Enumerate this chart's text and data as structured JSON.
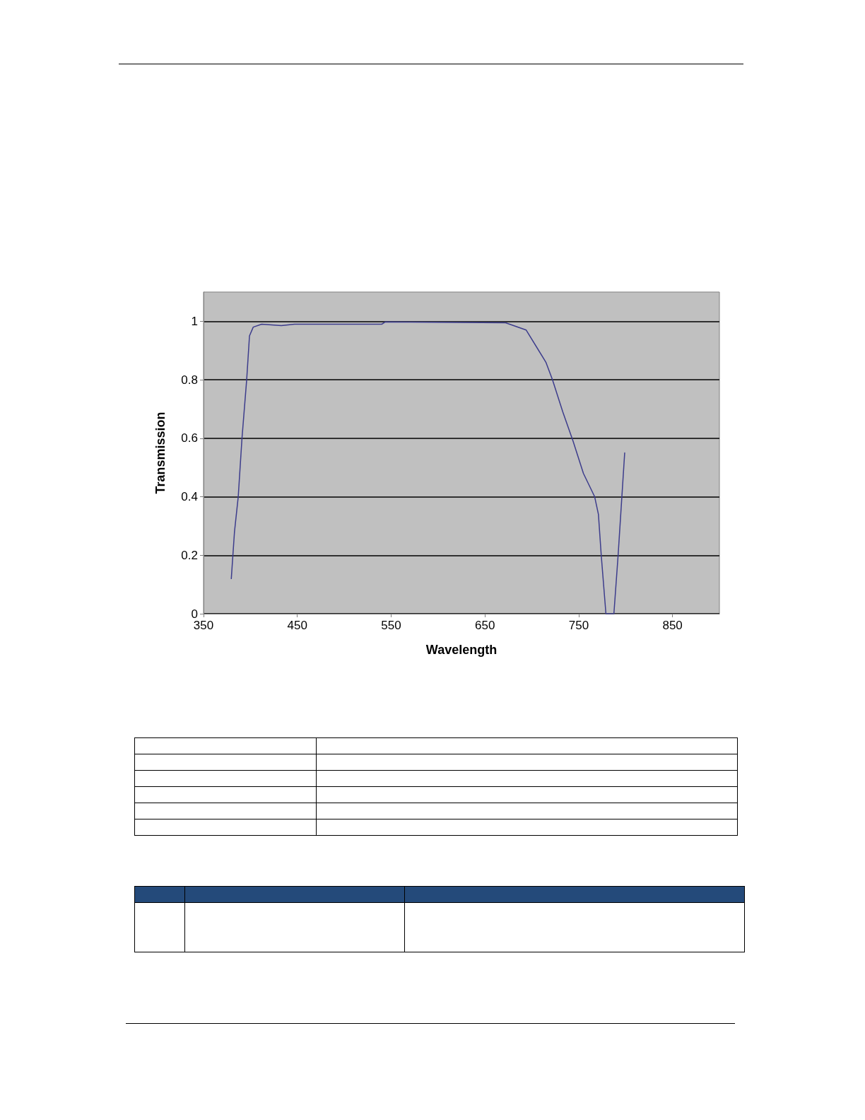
{
  "chart_data": {
    "type": "line",
    "xlabel": "Wavelength",
    "ylabel": "Transmission",
    "x": [
      379.6,
      383,
      387,
      391,
      396,
      399,
      403,
      412,
      433,
      447,
      540,
      544,
      672,
      694,
      715,
      722,
      733,
      744,
      755,
      767,
      771,
      774,
      779,
      787.5,
      792,
      799
    ],
    "series": [
      {
        "color": "#3c3c8c",
        "values": [
          0.12,
          0.28,
          0.4,
          0.6,
          0.8,
          0.95,
          0.98,
          0.99,
          0.985,
          0.99,
          0.99,
          0.998,
          0.995,
          0.97,
          0.86,
          0.8,
          0.69,
          0.59,
          0.48,
          0.4,
          0.34,
          0.2,
          0,
          0,
          0.2,
          0.55
        ]
      }
    ],
    "xlim": [
      350,
      900
    ],
    "xticks": [
      350,
      450,
      550,
      650,
      750,
      850
    ],
    "ylim": [
      0,
      1.1
    ],
    "yticks": [
      0,
      0.2,
      0.4,
      0.6,
      0.8,
      1
    ],
    "grid": "y",
    "marker": "none",
    "line_style": "solid"
  }
}
